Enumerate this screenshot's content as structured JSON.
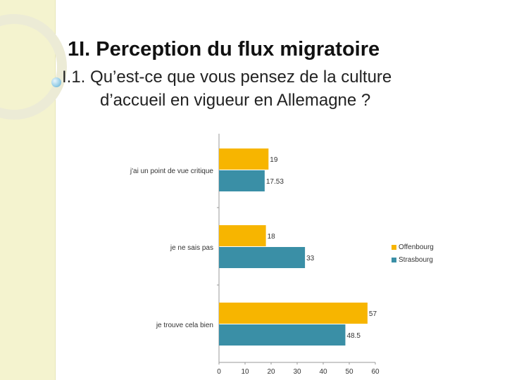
{
  "slide": {
    "title": "1I.  Perception du flux migratoire",
    "subtitle_line1": "I.1.  Qu’est-ce que vous pensez de la culture",
    "subtitle_line2": "d’accueil en vigueur en Allemagne ?"
  },
  "colors": {
    "band": "#f4f3cf",
    "Offenbourg": "#f7b500",
    "Strasbourg": "#3a8fa6"
  },
  "chart_data": {
    "type": "bar",
    "orientation": "horizontal",
    "categories": [
      "j'ai un point de vue critique",
      "je ne sais pas",
      "je trouve cela bien"
    ],
    "series": [
      {
        "name": "Offenbourg",
        "values": [
          19,
          18,
          57
        ]
      },
      {
        "name": "Strasbourg",
        "values": [
          17.53,
          33,
          48.5
        ]
      }
    ],
    "value_labels": [
      [
        "19",
        "18",
        "57"
      ],
      [
        "17.53",
        "33",
        "48.5"
      ]
    ],
    "xlim": [
      0,
      60
    ],
    "xticks": [
      "0",
      "10",
      "20",
      "30",
      "40",
      "50",
      "60"
    ],
    "legend": "right",
    "grid": false
  }
}
